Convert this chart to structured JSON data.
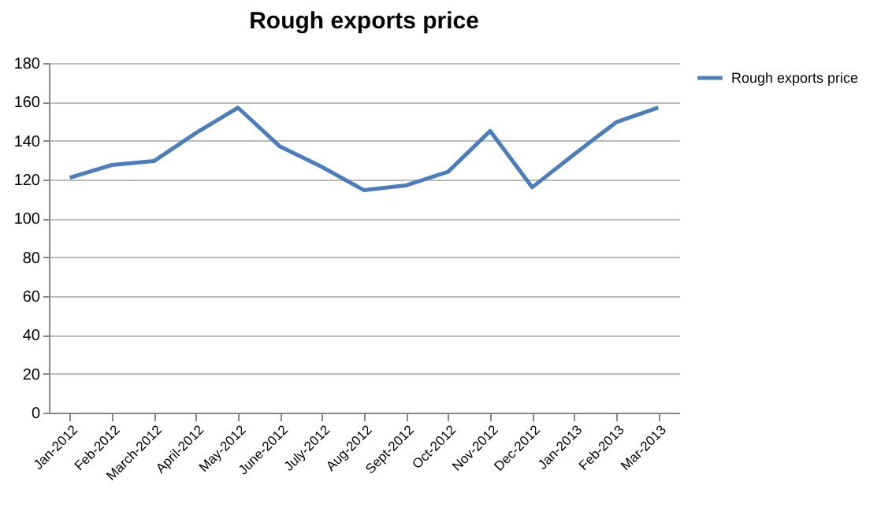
{
  "chart_data": {
    "type": "line",
    "title": "Rough exports price",
    "categories": [
      "Jan-2012",
      "Feb-2012",
      "March-2012",
      "April-2012",
      "May-2012",
      "June-2012",
      "July-2012",
      "Aug-2012",
      "Sept-2012",
      "Oct-2012",
      "Nov-2012",
      "Dec-2012",
      "Jan-2013",
      "Feb-2013",
      "Mar-2013"
    ],
    "series": [
      {
        "name": "Rough exports price",
        "color": "#4a7ebb",
        "values": [
          121,
          127.5,
          129.5,
          144,
          157,
          137,
          126.5,
          114.5,
          117,
          124,
          145,
          116,
          133,
          149.5,
          157
        ]
      }
    ],
    "ylim": [
      0,
      180
    ],
    "yticks": [
      0,
      20,
      40,
      60,
      80,
      100,
      120,
      140,
      160,
      180
    ],
    "grid": "y",
    "legend": "right",
    "marker": "none"
  }
}
